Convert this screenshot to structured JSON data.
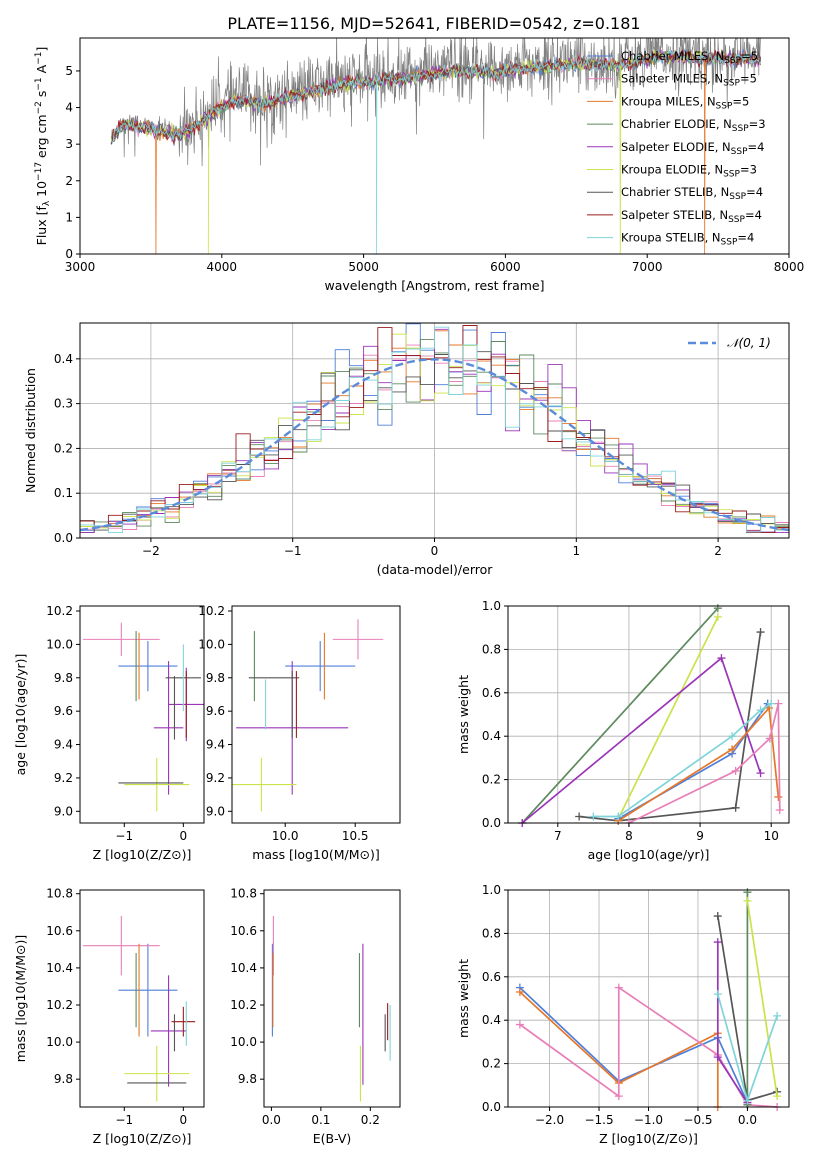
{
  "page_title": "PLATE=1156, MJD=52641, FIBERID=0542, z=0.181",
  "colors": {
    "chab_miles": "#4f7fd9",
    "salp_miles": "#e87fb8",
    "krou_miles": "#e5772a",
    "chab_elodie": "#5d8a5d",
    "salp_elodie": "#9a35b8",
    "krou_elodie": "#cbe34a",
    "chab_stelib": "#555555",
    "salp_stelib": "#9b1c1c",
    "krou_stelib": "#7fd4d9",
    "data": "#808080",
    "gauss": "#5b8bdb"
  },
  "chart_data": [
    {
      "id": "spectrum",
      "type": "line",
      "xlabel": "wavelength [Angstrom, rest frame]",
      "ylabel": "Flux [f_λ 10^-17 erg cm^-2 s^-1 A^-1]",
      "xlim": [
        3000,
        8000
      ],
      "ylim": [
        0,
        5.9
      ],
      "xticks": [
        3000,
        4000,
        5000,
        6000,
        7000,
        8000
      ],
      "yticks": [
        0,
        1,
        2,
        3,
        4,
        5
      ],
      "legend": "upper right",
      "series": [
        {
          "name": "Chabrier MILES, N_SSP=5",
          "color": "chab_miles"
        },
        {
          "name": "Salpeter MILES, N_SSP=5",
          "color": "salp_miles"
        },
        {
          "name": "Kroupa MILES, N_SSP=5",
          "color": "krou_miles"
        },
        {
          "name": "Chabrier ELODIE, N_SSP=3",
          "color": "chab_elodie"
        },
        {
          "name": "Salpeter ELODIE, N_SSP=4",
          "color": "salp_elodie"
        },
        {
          "name": "Kroupa ELODIE, N_SSP=3",
          "color": "krou_elodie"
        },
        {
          "name": "Chabrier STELIB, N_SSP=4",
          "color": "chab_stelib"
        },
        {
          "name": "Salpeter STELIB, N_SSP=4",
          "color": "salp_stelib"
        },
        {
          "name": "Kroupa STELIB, N_SSP=4",
          "color": "krou_stelib"
        }
      ],
      "data_range": [
        3220,
        7800
      ],
      "continuum": {
        "x": [
          3220,
          3300,
          3400,
          3550,
          3700,
          3800,
          3950,
          4100,
          4300,
          4500,
          4800,
          5000,
          5300,
          5600,
          5900,
          6200,
          6500,
          6800,
          7100,
          7400,
          7800
        ],
        "y": [
          3.2,
          3.65,
          3.6,
          3.45,
          3.35,
          3.55,
          4.0,
          4.3,
          4.2,
          4.4,
          4.7,
          4.8,
          4.9,
          5.1,
          5.05,
          5.2,
          5.3,
          5.25,
          5.5,
          5.45,
          5.4
        ]
      },
      "model_dropouts": [
        {
          "series": "Kroupa MILES, N_SSP=5",
          "x": 3535
        },
        {
          "series": "Kroupa ELODIE, N_SSP=3",
          "x": 3905
        },
        {
          "series": "Kroupa STELIB, N_SSP=4",
          "x": 5090
        },
        {
          "series": "Kroupa ELODIE, N_SSP=3",
          "x": 6810
        },
        {
          "series": "Kroupa MILES, N_SSP=5",
          "x": 7405
        }
      ]
    },
    {
      "id": "residual_hist",
      "type": "step",
      "xlabel": "(data-model)/error",
      "ylabel": "Normed distribution",
      "xlim": [
        -2.5,
        2.5
      ],
      "ylim": [
        0,
        0.48
      ],
      "xticks": [
        -2,
        -1,
        0,
        1,
        2
      ],
      "yticks": [
        0.0,
        0.1,
        0.2,
        0.3,
        0.4
      ],
      "grid": true,
      "legend": "upper right",
      "reference_curve": {
        "name": "N(0,1)",
        "mean": 0,
        "sigma": 1
      },
      "bin_range": [
        -2.5,
        2.5
      ],
      "bin_width": 0.1
    },
    {
      "id": "age_vs_Z",
      "type": "errorbar",
      "xlabel": "Z [log10(Z/Z⊙)]",
      "ylabel": "age [log10(age/yr)]",
      "xlim": [
        -1.75,
        0.35
      ],
      "ylim": [
        8.93,
        10.23
      ],
      "xticks": [
        -1,
        0
      ],
      "yticks": [
        9.0,
        9.2,
        9.4,
        9.6,
        9.8,
        10.0,
        10.2
      ],
      "points": [
        {
          "series": "chab_miles",
          "x": -0.6,
          "xerr": 0.5,
          "y": 9.87,
          "yerr": 0.15
        },
        {
          "series": "salp_miles",
          "x": -1.05,
          "xerr": 0.65,
          "y": 10.03,
          "yerr": 0.1
        },
        {
          "series": "krou_miles",
          "x": -0.75,
          "xerr": 0.0,
          "y": 9.87,
          "yerr": 0.2
        },
        {
          "series": "chab_elodie",
          "x": -0.8,
          "xerr": 0.0,
          "y": 9.87,
          "yerr": 0.21
        },
        {
          "series": "salp_elodie",
          "x": 0.05,
          "xerr": 0.3,
          "y": 9.64,
          "yerr": 0.22
        },
        {
          "series": "salp_elodie",
          "x": -0.25,
          "xerr": 0.25,
          "y": 9.5,
          "yerr": 0.4
        },
        {
          "series": "krou_elodie",
          "x": -0.45,
          "xerr": 0.55,
          "y": 9.16,
          "yerr": 0.16
        },
        {
          "series": "chab_stelib",
          "x": -0.55,
          "xerr": 0.55,
          "y": 9.17,
          "yerr": 0.0
        },
        {
          "series": "chab_stelib",
          "x": -0.15,
          "xerr": 0.0,
          "y": 9.62,
          "yerr": 0.19
        },
        {
          "series": "chab_stelib",
          "x": 0.0,
          "xerr": 0.3,
          "y": 9.8,
          "yerr": 0.0
        },
        {
          "series": "salp_stelib",
          "x": 0.05,
          "xerr": 0.0,
          "y": 9.64,
          "yerr": 0.2
        },
        {
          "series": "krou_stelib",
          "x": 0.0,
          "xerr": 0.0,
          "y": 9.8,
          "yerr": 0.2
        }
      ]
    },
    {
      "id": "age_vs_mass",
      "type": "errorbar",
      "xlabel": "mass [log10(M/M⊙)]",
      "ylabel": "",
      "xlim": [
        9.62,
        10.82
      ],
      "ylim": [
        8.93,
        10.23
      ],
      "xticks": [
        10.0,
        10.5
      ],
      "yticks": [
        9.0,
        9.2,
        9.4,
        9.6,
        9.8,
        10.0,
        10.2
      ],
      "points": [
        {
          "series": "chab_miles",
          "x": 10.25,
          "xerr": 0.25,
          "y": 9.87,
          "yerr": 0.15
        },
        {
          "series": "salp_miles",
          "x": 10.52,
          "xerr": 0.18,
          "y": 10.03,
          "yerr": 0.12
        },
        {
          "series": "krou_miles",
          "x": 10.28,
          "xerr": 0.0,
          "y": 9.87,
          "yerr": 0.2
        },
        {
          "series": "chab_elodie",
          "x": 9.78,
          "xerr": 0.0,
          "y": 9.87,
          "yerr": 0.21
        },
        {
          "series": "salp_elodie",
          "x": 10.05,
          "xerr": 0.4,
          "y": 9.5,
          "yerr": 0.4
        },
        {
          "series": "krou_elodie",
          "x": 9.83,
          "xerr": 0.25,
          "y": 9.16,
          "yerr": 0.16
        },
        {
          "series": "chab_stelib",
          "x": 9.92,
          "xerr": 0.18,
          "y": 9.8,
          "yerr": 0.0
        },
        {
          "series": "chab_stelib",
          "x": 10.05,
          "xerr": 0.0,
          "y": 9.64,
          "yerr": 0.2
        },
        {
          "series": "salp_stelib",
          "x": 10.08,
          "xerr": 0.0,
          "y": 9.64,
          "yerr": 0.2
        },
        {
          "series": "krou_stelib",
          "x": 9.86,
          "xerr": 0.0,
          "y": 9.64,
          "yerr": 0.15
        }
      ]
    },
    {
      "id": "mass_weight_vs_age",
      "type": "line",
      "xlabel": "age [log10(age/yr)]",
      "ylabel": "mass weight",
      "xlim": [
        6.3,
        10.25
      ],
      "ylim": [
        0,
        1
      ],
      "xticks": [
        7,
        8,
        9,
        10
      ],
      "yticks": [
        0.0,
        0.2,
        0.4,
        0.6,
        0.8,
        1.0
      ],
      "grid": true,
      "series": [
        {
          "color": "chab_elodie",
          "points": [
            [
              6.5,
              0.0
            ],
            [
              9.25,
              0.99
            ]
          ]
        },
        {
          "color": "krou_elodie",
          "points": [
            [
              7.85,
              0.02
            ],
            [
              9.25,
              0.95
            ]
          ]
        },
        {
          "color": "salp_elodie",
          "points": [
            [
              6.5,
              0.0
            ],
            [
              9.3,
              0.76
            ],
            [
              9.85,
              0.23
            ]
          ]
        },
        {
          "color": "chab_stelib",
          "points": [
            [
              7.3,
              0.03
            ],
            [
              7.85,
              0.01
            ],
            [
              9.5,
              0.07
            ],
            [
              9.85,
              0.88
            ]
          ]
        },
        {
          "color": "chab_miles",
          "points": [
            [
              7.85,
              0.02
            ],
            [
              9.45,
              0.32
            ],
            [
              9.95,
              0.55
            ]
          ]
        },
        {
          "color": "krou_miles",
          "points": [
            [
              7.85,
              0.01
            ],
            [
              9.45,
              0.34
            ],
            [
              9.97,
              0.53
            ],
            [
              10.1,
              0.12
            ]
          ]
        },
        {
          "color": "salp_miles",
          "points": [
            [
              8.0,
              0.0
            ],
            [
              9.5,
              0.24
            ],
            [
              9.98,
              0.39
            ],
            [
              10.1,
              0.55
            ],
            [
              10.12,
              0.06
            ]
          ]
        },
        {
          "color": "krou_stelib",
          "points": [
            [
              7.5,
              0.03
            ],
            [
              7.85,
              0.03
            ],
            [
              9.45,
              0.4
            ],
            [
              9.85,
              0.52
            ],
            [
              10.0,
              0.55
            ]
          ]
        }
      ]
    },
    {
      "id": "mass_vs_Z",
      "type": "errorbar",
      "xlabel": "Z [log10(Z/Z⊙)]",
      "ylabel": "mass [log10(M/M⊙)]",
      "xlim": [
        -1.75,
        0.35
      ],
      "ylim": [
        9.65,
        10.82
      ],
      "xticks": [
        -1,
        0
      ],
      "yticks": [
        9.8,
        10.0,
        10.2,
        10.4,
        10.6,
        10.8
      ],
      "points": [
        {
          "series": "chab_miles",
          "x": -0.6,
          "xerr": 0.5,
          "y": 10.28,
          "yerr": 0.25
        },
        {
          "series": "salp_miles",
          "x": -1.05,
          "xerr": 0.65,
          "y": 10.52,
          "yerr": 0.16
        },
        {
          "series": "krou_miles",
          "x": -0.75,
          "xerr": 0.0,
          "y": 10.28,
          "yerr": 0.25
        },
        {
          "series": "chab_elodie",
          "x": -0.8,
          "xerr": 0.0,
          "y": 10.28,
          "yerr": 0.2
        },
        {
          "series": "salp_elodie",
          "x": -0.25,
          "xerr": 0.3,
          "y": 10.06,
          "yerr": 0.3
        },
        {
          "series": "krou_elodie",
          "x": -0.45,
          "xerr": 0.55,
          "y": 9.83,
          "yerr": 0.15
        },
        {
          "series": "chab_stelib",
          "x": -0.45,
          "xerr": 0.5,
          "y": 9.78,
          "yerr": 0.0
        },
        {
          "series": "chab_stelib",
          "x": -0.15,
          "xerr": 0.0,
          "y": 10.05,
          "yerr": 0.1
        },
        {
          "series": "salp_stelib",
          "x": 0.0,
          "xerr": 0.2,
          "y": 10.11,
          "yerr": 0.08
        },
        {
          "series": "krou_stelib",
          "x": 0.05,
          "xerr": 0.0,
          "y": 10.1,
          "yerr": 0.12
        }
      ]
    },
    {
      "id": "mass_vs_ebv",
      "type": "errorbar",
      "xlabel": "E(B-V)",
      "ylabel": "",
      "xlim": [
        -0.015,
        0.26
      ],
      "ylim": [
        9.65,
        10.82
      ],
      "xticks": [
        0.0,
        0.1,
        0.2
      ],
      "yticks": [
        9.8,
        10.0,
        10.2,
        10.4,
        10.6,
        10.8
      ],
      "points": [
        {
          "series": "chab_miles",
          "x": 0.002,
          "xerr": 0.0,
          "y": 10.28,
          "yerr": 0.25
        },
        {
          "series": "salp_miles",
          "x": 0.004,
          "xerr": 0.0,
          "y": 10.52,
          "yerr": 0.16
        },
        {
          "series": "krou_miles",
          "x": 0.003,
          "xerr": 0.0,
          "y": 10.28,
          "yerr": 0.2
        },
        {
          "series": "chab_elodie",
          "x": 0.178,
          "xerr": 0.0,
          "y": 10.28,
          "yerr": 0.2
        },
        {
          "series": "salp_elodie",
          "x": 0.185,
          "xerr": 0.0,
          "y": 10.15,
          "yerr": 0.38
        },
        {
          "series": "krou_elodie",
          "x": 0.18,
          "xerr": 0.0,
          "y": 9.83,
          "yerr": 0.15
        },
        {
          "series": "chab_stelib",
          "x": 0.23,
          "xerr": 0.0,
          "y": 10.05,
          "yerr": 0.1
        },
        {
          "series": "salp_stelib",
          "x": 0.235,
          "xerr": 0.0,
          "y": 10.11,
          "yerr": 0.1
        },
        {
          "series": "krou_stelib",
          "x": 0.24,
          "xerr": 0.0,
          "y": 10.05,
          "yerr": 0.15
        }
      ]
    },
    {
      "id": "mass_weight_vs_Z",
      "type": "line",
      "xlabel": "Z [log10(Z/Z⊙)]",
      "ylabel": "mass weight",
      "xlim": [
        -2.42,
        0.42
      ],
      "ylim": [
        0,
        1
      ],
      "xticks": [
        -2.0,
        -1.5,
        -1.0,
        -0.5,
        0.0
      ],
      "yticks": [
        0.0,
        0.2,
        0.4,
        0.6,
        0.8,
        1.0
      ],
      "grid": true,
      "series": [
        {
          "color": "chab_miles",
          "points": [
            [
              -2.3,
              0.55
            ],
            [
              -1.3,
              0.12
            ],
            [
              -0.3,
              0.32
            ],
            [
              0.0,
              0.02
            ]
          ]
        },
        {
          "color": "krou_miles",
          "points": [
            [
              -2.3,
              0.53
            ],
            [
              -1.3,
              0.11
            ],
            [
              -0.3,
              0.34
            ],
            [
              -0.3,
              0.0
            ]
          ]
        },
        {
          "color": "salp_miles",
          "points": [
            [
              -2.3,
              0.38
            ],
            [
              -1.3,
              0.05
            ],
            [
              -1.3,
              0.55
            ],
            [
              -0.3,
              0.24
            ],
            [
              0.0,
              0.01
            ],
            [
              0.3,
              0.0
            ]
          ]
        },
        {
          "color": "salp_elodie",
          "points": [
            [
              -0.3,
              0.76
            ],
            [
              -0.3,
              0.23
            ],
            [
              0.0,
              0.02
            ]
          ]
        },
        {
          "color": "chab_stelib",
          "points": [
            [
              -0.3,
              0.88
            ],
            [
              0.0,
              0.03
            ],
            [
              0.3,
              0.07
            ]
          ]
        },
        {
          "color": "chab_elodie",
          "points": [
            [
              0.0,
              0.99
            ],
            [
              0.0,
              0.01
            ]
          ]
        },
        {
          "color": "krou_elodie",
          "points": [
            [
              0.0,
              0.95
            ],
            [
              0.3,
              0.05
            ]
          ]
        },
        {
          "color": "krou_stelib",
          "points": [
            [
              -0.3,
              0.52
            ],
            [
              0.0,
              0.03
            ],
            [
              0.3,
              0.42
            ]
          ]
        }
      ]
    }
  ]
}
